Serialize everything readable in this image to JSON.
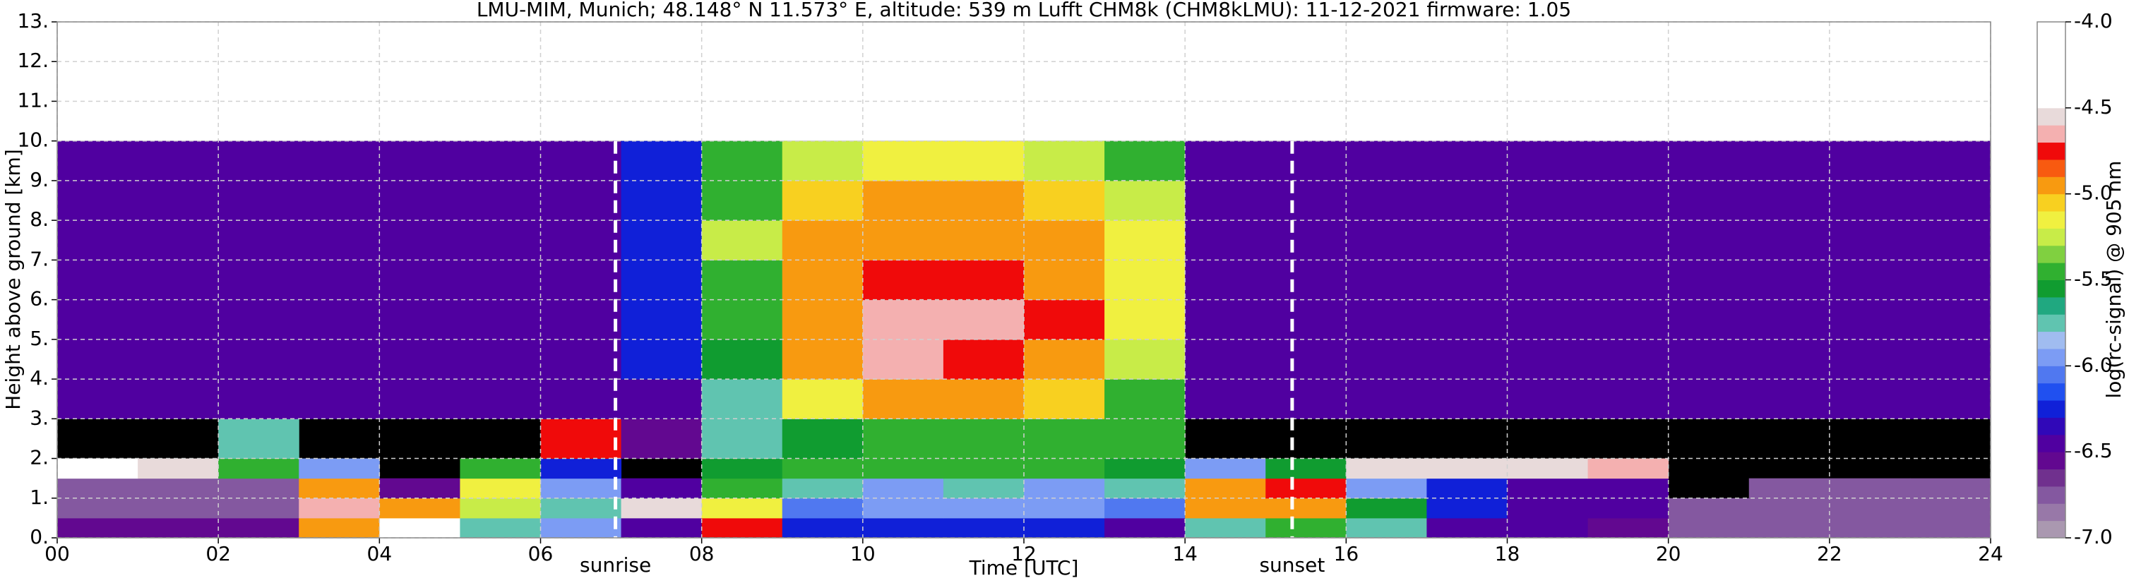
{
  "chart_data": {
    "type": "heatmap",
    "title": "LMU-MIM, Munich; 48.148° N 11.573° E, altitude: 539 m    Lufft CHM8k (CHM8kLMU): 11-12-2021    firmware: 1.05",
    "xlabel": "Time [UTC]",
    "ylabel": "Height above ground [km]",
    "colorbar_label": "log(rc-signal) @ 905 nm",
    "xlim": [
      0,
      24
    ],
    "ylim": [
      0,
      13
    ],
    "xticks": [
      {
        "value": 0,
        "label": "00"
      },
      {
        "value": 2,
        "label": "02"
      },
      {
        "value": 4,
        "label": "04"
      },
      {
        "value": 6,
        "label": "06"
      },
      {
        "value": 8,
        "label": "08"
      },
      {
        "value": 10,
        "label": "10"
      },
      {
        "value": 12,
        "label": "12"
      },
      {
        "value": 14,
        "label": "14"
      },
      {
        "value": 16,
        "label": "16"
      },
      {
        "value": 18,
        "label": "18"
      },
      {
        "value": 20,
        "label": "20"
      },
      {
        "value": 22,
        "label": "22"
      },
      {
        "value": 24,
        "label": "24"
      }
    ],
    "yticks": [
      {
        "value": 0,
        "label": "0."
      },
      {
        "value": 1,
        "label": "1."
      },
      {
        "value": 2,
        "label": "2."
      },
      {
        "value": 3,
        "label": "3."
      },
      {
        "value": 4,
        "label": "4."
      },
      {
        "value": 5,
        "label": "5."
      },
      {
        "value": 6,
        "label": "6."
      },
      {
        "value": 7,
        "label": "7."
      },
      {
        "value": 8,
        "label": "8."
      },
      {
        "value": 9,
        "label": "9."
      },
      {
        "value": 10,
        "label": "10."
      },
      {
        "value": 11,
        "label": "11."
      },
      {
        "value": 12,
        "label": "12."
      },
      {
        "value": 13,
        "label": "13."
      }
    ],
    "grid": true,
    "clim": [
      -7,
      -4
    ],
    "colorbar_ticks": [
      {
        "value": -4,
        "label": "-4.0"
      },
      -4.5,
      {
        "value": -5,
        "label": "-5.0"
      },
      -5.5,
      {
        "value": -6,
        "label": "-6.0"
      },
      -6.5,
      {
        "value": -7,
        "label": "-7.0"
      }
    ],
    "colormap": [
      "#aa98b0",
      "#9878a8",
      "#8458a0",
      "#70308e",
      "#620890",
      "#5000a0",
      "#3008b8",
      "#1020d8",
      "#2050f0",
      "#5078f0",
      "#7c9cf4",
      "#a0bcf0",
      "#60c4b0",
      "#20a880",
      "#109c30",
      "#30b030",
      "#80d040",
      "#c8ec48",
      "#f0f040",
      "#f8d020",
      "#f89a10",
      "#f85a10",
      "#f00a0a",
      "#f4b0b0",
      "#e8dada",
      "#ffffff",
      "#ffffff",
      "#ffffff",
      "#ffffff",
      "#ffffff"
    ],
    "xbins": [
      0,
      1,
      2,
      3,
      4,
      5,
      6,
      7,
      8,
      9,
      10,
      11,
      12,
      13,
      14,
      15,
      16,
      17,
      18,
      19,
      20,
      21,
      22,
      23,
      24
    ],
    "ybins": [
      0,
      0.5,
      1,
      1.5,
      2,
      3,
      4,
      5,
      6,
      7,
      8,
      9,
      10
    ],
    "z": [
      [
        -6.6,
        -6.6,
        -6.6,
        -5.0,
        -4.4,
        -5.8,
        -6.0,
        -6.4,
        -4.8,
        -6.2,
        -6.3,
        -6.3,
        -6.3,
        -6.4,
        -5.7,
        -5.5,
        -5.8,
        -6.5,
        -6.5,
        -6.6,
        -6.8,
        -6.7,
        -6.7,
        -6.7
      ],
      [
        -6.8,
        -6.8,
        -6.7,
        -4.7,
        -4.9,
        -5.3,
        -5.8,
        -4.6,
        -5.2,
        -6.1,
        -6.0,
        -6.0,
        -6.0,
        -6.1,
        -5.0,
        -4.9,
        -5.6,
        -6.3,
        -6.5,
        -6.4,
        -6.8,
        -6.7,
        -6.7,
        -6.7
      ],
      [
        -6.8,
        -6.8,
        -6.8,
        -5.0,
        -6.6,
        -5.2,
        -5.9,
        -6.5,
        -5.5,
        -5.8,
        -5.9,
        -5.8,
        -5.9,
        -5.7,
        -5.0,
        -4.8,
        -5.9,
        -6.2,
        -6.4,
        -6.4,
        null,
        -6.8,
        -6.8,
        -6.8
      ],
      [
        -4.5,
        -4.6,
        -5.5,
        -6.0,
        null,
        -5.5,
        -6.2,
        null,
        -5.6,
        -5.5,
        -5.5,
        -5.5,
        -5.5,
        -5.6,
        -5.9,
        -5.6,
        -4.6,
        -4.6,
        -4.6,
        -4.7,
        null,
        null,
        null,
        null
      ],
      [
        null,
        null,
        -5.8,
        null,
        null,
        null,
        -4.8,
        -6.6,
        -5.8,
        -5.6,
        -5.4,
        -5.5,
        -5.4,
        -5.5,
        null,
        null,
        null,
        null,
        null,
        null,
        null,
        null,
        null,
        null
      ],
      [
        -6.5,
        -6.5,
        -6.5,
        -6.5,
        -6.5,
        -6.5,
        -6.5,
        -6.4,
        -5.7,
        -5.2,
        -4.9,
        -5.0,
        -5.1,
        -5.4,
        -6.5,
        -6.5,
        -6.5,
        -6.5,
        -6.5,
        -6.5,
        -6.5,
        -6.5,
        -6.5,
        -6.5
      ],
      [
        -6.4,
        -6.4,
        -6.4,
        -6.4,
        -6.4,
        -6.4,
        -6.4,
        -6.3,
        -5.6,
        -5.0,
        -4.7,
        -4.8,
        -4.9,
        -5.3,
        -6.4,
        -6.4,
        -6.4,
        -6.4,
        -6.4,
        -6.4,
        -6.4,
        -6.4,
        -6.4,
        -6.4
      ],
      [
        -6.4,
        -6.4,
        -6.4,
        -6.4,
        -6.4,
        -6.4,
        -6.4,
        -6.2,
        -5.5,
        -4.9,
        -4.7,
        -4.7,
        -4.8,
        -5.2,
        -6.4,
        -6.4,
        -6.4,
        -6.4,
        -6.4,
        -6.4,
        -6.4,
        -6.4,
        -6.4,
        -6.4
      ],
      [
        -6.4,
        -6.4,
        -6.4,
        -6.4,
        -6.4,
        -6.4,
        -6.4,
        -6.2,
        -5.4,
        -4.9,
        -4.8,
        -4.8,
        -4.9,
        -5.2,
        -6.4,
        -6.4,
        -6.4,
        -6.4,
        -6.4,
        -6.4,
        -6.4,
        -6.4,
        -6.4,
        -6.4
      ],
      [
        -6.4,
        -6.4,
        -6.4,
        -6.4,
        -6.4,
        -6.4,
        -6.4,
        -6.2,
        -5.3,
        -5.0,
        -4.9,
        -4.9,
        -5.0,
        -5.2,
        -6.4,
        -6.4,
        -6.4,
        -6.4,
        -6.4,
        -6.4,
        -6.4,
        -6.4,
        -6.4,
        -6.4
      ],
      [
        -6.4,
        -6.4,
        -6.4,
        -6.4,
        -6.4,
        -6.4,
        -6.4,
        -6.2,
        -5.4,
        -5.1,
        -5.0,
        -5.0,
        -5.1,
        -5.3,
        -6.4,
        -6.4,
        -6.4,
        -6.4,
        -6.4,
        -6.4,
        -6.4,
        -6.4,
        -6.4,
        -6.4
      ],
      [
        -6.4,
        -6.4,
        -6.4,
        -6.4,
        -6.4,
        -6.4,
        -6.4,
        -6.2,
        -5.5,
        -5.3,
        -5.2,
        -5.2,
        -5.3,
        -5.4,
        -6.4,
        -6.4,
        -6.4,
        -6.4,
        -6.4,
        -6.4,
        -6.4,
        -6.4,
        -6.4,
        -6.4
      ]
    ],
    "annotations": [
      {
        "x": 6.93,
        "label": "sunrise"
      },
      {
        "x": 15.33,
        "label": "sunset"
      }
    ]
  }
}
